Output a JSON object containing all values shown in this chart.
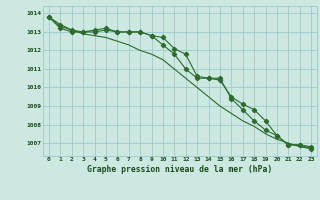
{
  "x": [
    0,
    1,
    2,
    3,
    4,
    5,
    6,
    7,
    8,
    9,
    10,
    11,
    12,
    13,
    14,
    15,
    16,
    17,
    18,
    19,
    20,
    21,
    22,
    23
  ],
  "series1": [
    1013.8,
    1013.4,
    1013.1,
    1013.0,
    1013.0,
    1013.1,
    1013.0,
    1013.0,
    1013.0,
    1012.8,
    1012.7,
    1012.1,
    1011.8,
    1010.6,
    1010.5,
    1010.4,
    1009.5,
    1009.1,
    1008.8,
    1008.2,
    1007.4,
    1006.9,
    1006.9,
    1006.8
  ],
  "series2": [
    1013.8,
    1013.2,
    1013.0,
    1013.0,
    1013.1,
    1013.2,
    1013.0,
    1013.0,
    1013.0,
    1012.8,
    1012.3,
    1011.8,
    1011.0,
    1010.5,
    1010.5,
    1010.5,
    1009.4,
    1008.8,
    1008.2,
    1007.7,
    1007.4,
    1006.9,
    1006.9,
    1006.7
  ],
  "series3": [
    1013.8,
    1013.3,
    1013.1,
    1012.9,
    1012.8,
    1012.7,
    1012.5,
    1012.3,
    1012.0,
    1011.8,
    1011.5,
    1011.0,
    1010.5,
    1010.0,
    1009.5,
    1009.0,
    1008.6,
    1008.2,
    1007.9,
    1007.5,
    1007.2,
    1007.0,
    1006.8,
    1006.7
  ],
  "bg_color": "#cce8e0",
  "grid_color": "#99cccc",
  "line_color": "#2d6b2d",
  "xlabel": "Graphe pression niveau de la mer (hPa)",
  "ylabel_ticks": [
    1007,
    1008,
    1009,
    1010,
    1011,
    1012,
    1013,
    1014
  ],
  "ylim": [
    1006.3,
    1014.4
  ],
  "xlim": [
    -0.5,
    23.5
  ]
}
